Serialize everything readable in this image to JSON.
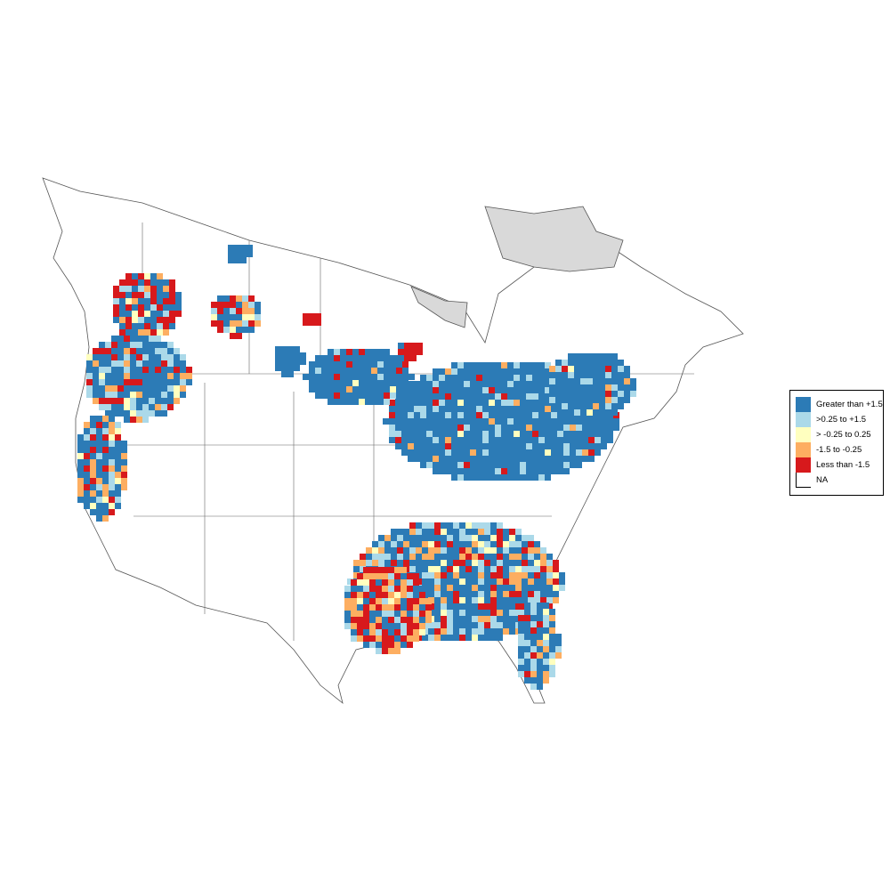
{
  "colors": {
    "greater_than_1_5": "#2c7bb6",
    "0_25_to_1_5": "#abd9e9",
    "neg0_25_to_0_25": "#ffffbf",
    "neg1_5_to_neg0_25": "#fdae61",
    "less_than_neg1_5": "#d7191c",
    "na": "#ffffff",
    "excluded_region": "#d9d9d9",
    "boundary": "#555555"
  },
  "legend": {
    "items": [
      {
        "label": "Greater than +1.5",
        "color": "#2c7bb6"
      },
      {
        "label": ">0.25 to +1.5",
        "color": "#abd9e9"
      },
      {
        "label": "> -0.25 to 0.25",
        "color": "#ffffbf"
      },
      {
        "label": "-1.5 to -0.25",
        "color": "#fdae61"
      },
      {
        "label": "Less than -1.5",
        "color": "#d7191c"
      },
      {
        "label": "NA",
        "color": "#ffffff"
      }
    ]
  }
}
